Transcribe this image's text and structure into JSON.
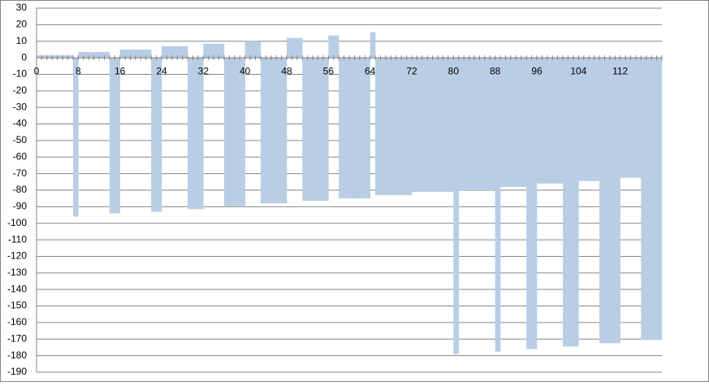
{
  "chart_data": {
    "type": "bar",
    "color": "#b9cde5",
    "grid": true,
    "ylim": [
      -190,
      30
    ],
    "yticks": [
      30,
      20,
      10,
      0,
      -10,
      -20,
      -30,
      -40,
      -50,
      -60,
      -70,
      -80,
      -90,
      -100,
      -110,
      -120,
      -130,
      -140,
      -150,
      -160,
      -170,
      -180,
      -190
    ],
    "categories": [
      0,
      null,
      null,
      null,
      null,
      null,
      null,
      null,
      8,
      null,
      null,
      null,
      null,
      null,
      null,
      null,
      16,
      null,
      null,
      null,
      null,
      null,
      null,
      null,
      24,
      null,
      null,
      null,
      null,
      null,
      null,
      null,
      32,
      null,
      null,
      null,
      null,
      null,
      null,
      null,
      40,
      null,
      null,
      null,
      null,
      null,
      null,
      null,
      48,
      null,
      null,
      null,
      null,
      null,
      null,
      null,
      56,
      null,
      null,
      null,
      null,
      null,
      null,
      null,
      64,
      null,
      null,
      null,
      null,
      null,
      null,
      null,
      72,
      null,
      null,
      null,
      null,
      null,
      null,
      null,
      80,
      null,
      null,
      null,
      null,
      null,
      null,
      null,
      88,
      null,
      null,
      null,
      null,
      null,
      null,
      null,
      96,
      null,
      null,
      null,
      null,
      null,
      null,
      null,
      104,
      null,
      null,
      null,
      null,
      null,
      null,
      null,
      112,
      null,
      null,
      null,
      null,
      null,
      null,
      null
    ],
    "values": [
      1.5,
      1.5,
      1.5,
      1.5,
      1.5,
      1.5,
      1.5,
      -96,
      3.5,
      3.5,
      3.5,
      3.5,
      3.5,
      3.5,
      -94,
      -94,
      5,
      5,
      5,
      5,
      5,
      5,
      -93,
      -93,
      7,
      7,
      7,
      7,
      7,
      -91.5,
      -91.5,
      -91.5,
      8.5,
      8.5,
      8.5,
      8.5,
      -89.5,
      -89.5,
      -89.5,
      -89.5,
      10,
      10,
      10,
      -88,
      -88,
      -88,
      -88,
      -88,
      12,
      12,
      12,
      -86.5,
      -86.5,
      -86.5,
      -86.5,
      -86.5,
      13.5,
      13.5,
      -85,
      -85,
      -85,
      -85,
      -85,
      -85,
      15.5,
      -83,
      -83,
      -83,
      -83,
      -83,
      -83,
      -83,
      -81,
      -81,
      -81,
      -81,
      -81,
      -81,
      -81,
      -81,
      -179,
      -80,
      -80,
      -80,
      -80,
      -80,
      -80,
      -80,
      -177.5,
      -78,
      -78,
      -78,
      -78,
      -78,
      -176,
      -176,
      -76,
      -76,
      -76,
      -76,
      -76,
      -174.5,
      -174.5,
      -174.5,
      -74.5,
      -74.5,
      -74.5,
      -74.5,
      -172.5,
      -172.5,
      -172.5,
      -172.5,
      -72.5,
      -72.5,
      -72.5,
      -72.5,
      -170.5,
      -170.5,
      -170.5,
      -170.5
    ]
  }
}
